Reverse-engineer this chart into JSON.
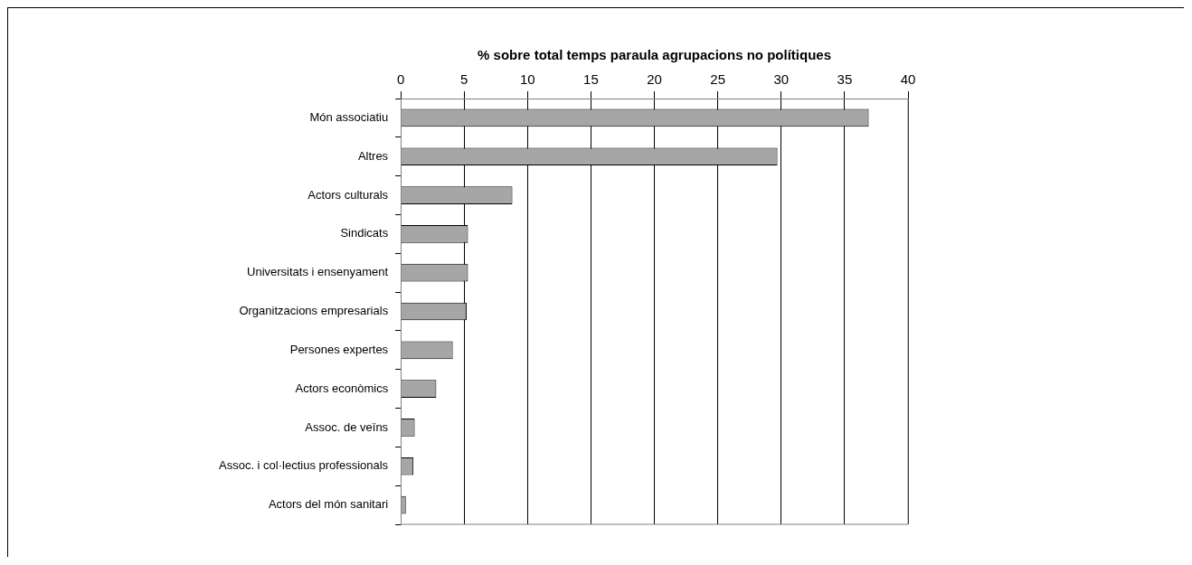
{
  "chart_data": {
    "type": "bar",
    "orientation": "horizontal",
    "xlabel": "% sobre total temps paraula agrupacions no polítiques",
    "categories": [
      "Món associatiu",
      "Altres",
      "Actors culturals",
      "Sindicats",
      "Universitats i ensenyament",
      "Organitzacions empresarials",
      "Persones expertes",
      "Actors econòmics",
      "Assoc. de veïns",
      "Assoc. i col·lectius professionals",
      "Actors del món sanitari"
    ],
    "values": [
      36.9,
      29.7,
      8.8,
      5.3,
      5.3,
      5.2,
      4.1,
      2.8,
      1.1,
      1.0,
      0.4
    ],
    "color": "#a6a6a6",
    "xlim": [
      0,
      40
    ],
    "xticks": [
      0,
      5,
      10,
      15,
      20,
      25,
      30,
      35,
      40
    ],
    "grid": "x",
    "legend": false
  }
}
